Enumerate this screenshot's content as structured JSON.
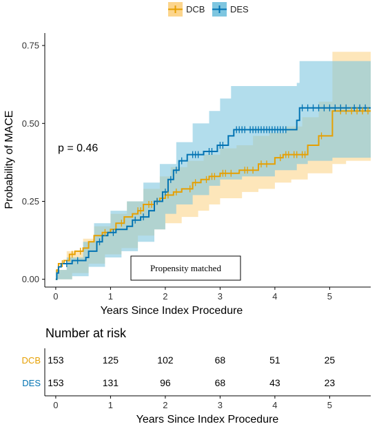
{
  "chart_data": {
    "type": "line",
    "subtype": "kaplan-meier-cumulative-incidence",
    "xlabel": "Years Since Index Procedure",
    "ylabel": "Probability of MACE",
    "xlim": [
      -0.2,
      5.75
    ],
    "ylim": [
      -0.025,
      0.79
    ],
    "xticks": [
      0,
      1,
      2,
      3,
      4,
      5
    ],
    "yticks": [
      0.0,
      0.25,
      0.5,
      0.75
    ],
    "ytick_labels": [
      "0.00",
      "0.25",
      "0.50",
      "0.75"
    ],
    "legend": {
      "placement": "top-center",
      "entries": [
        "DCB",
        "DES"
      ]
    },
    "annotation_pvalue": "p = 0.46",
    "annotation_box": "Propensity matched",
    "colors": {
      "DCB": "#E69F00",
      "DES": "#0072B2",
      "DCB_band": "#FCD58C",
      "DES_band": "#7EC6E0"
    },
    "series": [
      {
        "name": "DCB",
        "color": "#E69F00",
        "steps": [
          [
            0,
            0.0
          ],
          [
            0.02,
            0.03
          ],
          [
            0.05,
            0.05
          ],
          [
            0.15,
            0.06
          ],
          [
            0.25,
            0.08
          ],
          [
            0.35,
            0.09
          ],
          [
            0.5,
            0.1
          ],
          [
            0.6,
            0.12
          ],
          [
            0.7,
            0.14
          ],
          [
            0.85,
            0.15
          ],
          [
            1.0,
            0.16
          ],
          [
            1.1,
            0.18
          ],
          [
            1.25,
            0.2
          ],
          [
            1.4,
            0.21
          ],
          [
            1.5,
            0.22
          ],
          [
            1.6,
            0.24
          ],
          [
            1.8,
            0.25
          ],
          [
            1.9,
            0.26
          ],
          [
            2.0,
            0.27
          ],
          [
            2.15,
            0.28
          ],
          [
            2.3,
            0.29
          ],
          [
            2.5,
            0.31
          ],
          [
            2.65,
            0.32
          ],
          [
            2.8,
            0.33
          ],
          [
            3.0,
            0.34
          ],
          [
            3.35,
            0.35
          ],
          [
            3.7,
            0.37
          ],
          [
            4.0,
            0.39
          ],
          [
            4.15,
            0.4
          ],
          [
            4.6,
            0.43
          ],
          [
            4.8,
            0.46
          ],
          [
            5.05,
            0.54
          ],
          [
            5.75,
            0.54
          ]
        ],
        "ci_lower": [
          [
            0,
            0.0
          ],
          [
            0.3,
            0.02
          ],
          [
            0.6,
            0.05
          ],
          [
            0.9,
            0.08
          ],
          [
            1.2,
            0.1
          ],
          [
            1.5,
            0.14
          ],
          [
            1.8,
            0.16
          ],
          [
            2.0,
            0.18
          ],
          [
            2.3,
            0.2
          ],
          [
            2.6,
            0.22
          ],
          [
            2.8,
            0.24
          ],
          [
            3.0,
            0.26
          ],
          [
            3.4,
            0.28
          ],
          [
            3.7,
            0.29
          ],
          [
            4.0,
            0.31
          ],
          [
            4.3,
            0.32
          ],
          [
            4.6,
            0.34
          ],
          [
            5.05,
            0.37
          ],
          [
            5.3,
            0.38
          ],
          [
            5.75,
            0.38
          ]
        ],
        "ci_upper": [
          [
            0,
            0.03
          ],
          [
            0.2,
            0.09
          ],
          [
            0.5,
            0.13
          ],
          [
            0.7,
            0.17
          ],
          [
            1.0,
            0.21
          ],
          [
            1.3,
            0.25
          ],
          [
            1.6,
            0.29
          ],
          [
            1.9,
            0.33
          ],
          [
            2.1,
            0.36
          ],
          [
            2.4,
            0.38
          ],
          [
            2.7,
            0.4
          ],
          [
            3.0,
            0.42
          ],
          [
            3.3,
            0.43
          ],
          [
            3.6,
            0.46
          ],
          [
            3.9,
            0.47
          ],
          [
            4.2,
            0.49
          ],
          [
            4.5,
            0.52
          ],
          [
            4.8,
            0.57
          ],
          [
            5.05,
            0.73
          ],
          [
            5.75,
            0.73
          ]
        ],
        "number_at_risk": [
          153,
          125,
          102,
          68,
          51,
          25
        ]
      },
      {
        "name": "DES",
        "color": "#0072B2",
        "steps": [
          [
            0,
            0.0
          ],
          [
            0.02,
            0.02
          ],
          [
            0.05,
            0.04
          ],
          [
            0.1,
            0.05
          ],
          [
            0.3,
            0.06
          ],
          [
            0.55,
            0.07
          ],
          [
            0.6,
            0.09
          ],
          [
            0.75,
            0.12
          ],
          [
            0.85,
            0.14
          ],
          [
            0.95,
            0.15
          ],
          [
            1.1,
            0.16
          ],
          [
            1.3,
            0.17
          ],
          [
            1.4,
            0.19
          ],
          [
            1.55,
            0.2
          ],
          [
            1.7,
            0.22
          ],
          [
            1.8,
            0.25
          ],
          [
            1.95,
            0.28
          ],
          [
            2.05,
            0.32
          ],
          [
            2.15,
            0.35
          ],
          [
            2.25,
            0.38
          ],
          [
            2.4,
            0.4
          ],
          [
            2.7,
            0.41
          ],
          [
            2.95,
            0.43
          ],
          [
            3.15,
            0.46
          ],
          [
            3.25,
            0.48
          ],
          [
            3.5,
            0.48
          ],
          [
            4.4,
            0.51
          ],
          [
            4.45,
            0.55
          ],
          [
            5.75,
            0.55
          ]
        ],
        "ci_lower": [
          [
            0,
            0.0
          ],
          [
            0.3,
            0.01
          ],
          [
            0.6,
            0.04
          ],
          [
            0.9,
            0.07
          ],
          [
            1.2,
            0.09
          ],
          [
            1.5,
            0.12
          ],
          [
            1.8,
            0.16
          ],
          [
            2.0,
            0.21
          ],
          [
            2.2,
            0.24
          ],
          [
            2.5,
            0.27
          ],
          [
            2.8,
            0.3
          ],
          [
            3.0,
            0.32
          ],
          [
            3.4,
            0.33
          ],
          [
            4.0,
            0.35
          ],
          [
            4.4,
            0.37
          ],
          [
            4.6,
            0.38
          ],
          [
            5.05,
            0.39
          ],
          [
            5.75,
            0.39
          ]
        ],
        "ci_upper": [
          [
            0,
            0.03
          ],
          [
            0.2,
            0.07
          ],
          [
            0.5,
            0.12
          ],
          [
            0.7,
            0.18
          ],
          [
            1.0,
            0.22
          ],
          [
            1.3,
            0.25
          ],
          [
            1.6,
            0.31
          ],
          [
            1.9,
            0.37
          ],
          [
            2.2,
            0.44
          ],
          [
            2.5,
            0.5
          ],
          [
            2.8,
            0.54
          ],
          [
            3.0,
            0.58
          ],
          [
            3.2,
            0.62
          ],
          [
            4.4,
            0.63
          ],
          [
            4.45,
            0.7
          ],
          [
            5.75,
            0.7
          ]
        ],
        "number_at_risk": [
          153,
          131,
          96,
          68,
          43,
          23
        ]
      }
    ],
    "risk_table": {
      "title": "Number at risk",
      "xlabel": "Years Since Index Procedure",
      "times": [
        0,
        1,
        2,
        3,
        4,
        5
      ],
      "rows": [
        {
          "label": "DCB",
          "values": [
            153,
            125,
            102,
            68,
            51,
            25
          ]
        },
        {
          "label": "DES",
          "values": [
            153,
            131,
            96,
            68,
            43,
            23
          ]
        }
      ]
    }
  }
}
